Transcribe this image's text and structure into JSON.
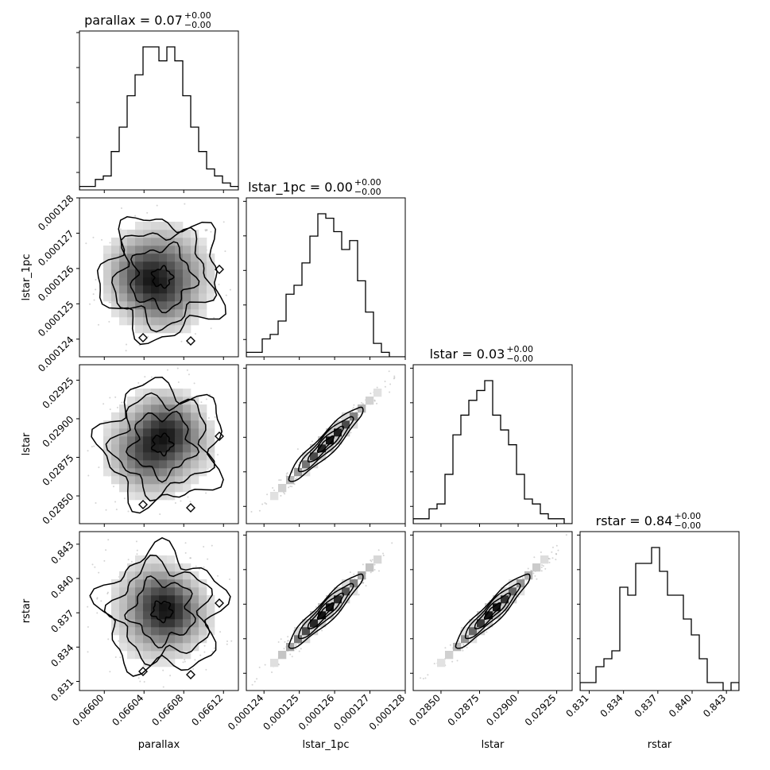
{
  "chart_data": {
    "type": "corner",
    "parameters": [
      {
        "name": "parallax",
        "range": [
          0.065975,
          0.066135
        ],
        "ticks": [
          "0.06600",
          "0.06604",
          "0.06608",
          "0.06612"
        ],
        "tick_values": [
          0.066,
          0.06604,
          0.06608,
          0.06612
        ]
      },
      {
        "name": "lstar_1pc",
        "range": [
          0.0001235,
          0.000128
        ],
        "ticks": [
          "0.000124",
          "0.000125",
          "0.000126",
          "0.000127",
          "0.000128"
        ],
        "tick_values": [
          0.000124,
          0.000125,
          0.000126,
          0.000127,
          0.000128
        ]
      },
      {
        "name": "lstar",
        "range": [
          0.02832,
          0.02935
        ],
        "ticks": [
          "0.02850",
          "0.02875",
          "0.02900",
          "0.02925"
        ],
        "tick_values": [
          0.0285,
          0.02875,
          0.029,
          0.02925
        ]
      },
      {
        "name": "rstar",
        "range": [
          0.8302,
          0.8441
        ],
        "ticks": [
          "0.831",
          "0.834",
          "0.837",
          "0.840",
          "0.843"
        ],
        "tick_values": [
          0.831,
          0.834,
          0.837,
          0.84,
          0.843
        ]
      }
    ],
    "titles": [
      {
        "main": "parallax = 0.07",
        "sup": "+0.00",
        "sub": "−0.00"
      },
      {
        "main": "lstar_1pc = 0.00",
        "sup": "+0.00",
        "sub": "−0.00"
      },
      {
        "main": "lstar = 0.03",
        "sup": "+0.00",
        "sub": "−0.00"
      },
      {
        "main": "rstar = 0.84",
        "sup": "+0.00",
        "sub": "−0.00"
      }
    ],
    "histograms": [
      [
        1,
        1,
        3,
        4,
        11,
        18,
        27,
        33,
        41,
        41,
        37,
        41,
        37,
        27,
        18,
        11,
        6,
        4,
        2,
        1
      ],
      [
        1,
        1,
        4,
        5,
        8,
        14,
        16,
        21,
        27,
        32,
        31,
        28,
        24,
        26,
        17,
        10,
        3,
        1,
        0,
        0
      ],
      [
        1,
        1,
        3,
        4,
        10,
        18,
        22,
        25,
        27,
        29,
        22,
        19,
        16,
        10,
        5,
        4,
        2,
        1,
        1,
        0
      ],
      [
        1,
        1,
        3,
        4,
        5,
        13,
        12,
        16,
        16,
        18,
        15,
        12,
        12,
        9,
        7,
        4,
        1,
        1,
        0,
        1
      ]
    ],
    "correlations": [
      [
        1,
        0,
        0,
        0
      ],
      [
        0,
        1,
        0.985,
        0.985
      ],
      [
        0,
        0.985,
        1,
        0.985
      ],
      [
        0,
        0.985,
        0.985,
        1
      ]
    ]
  }
}
